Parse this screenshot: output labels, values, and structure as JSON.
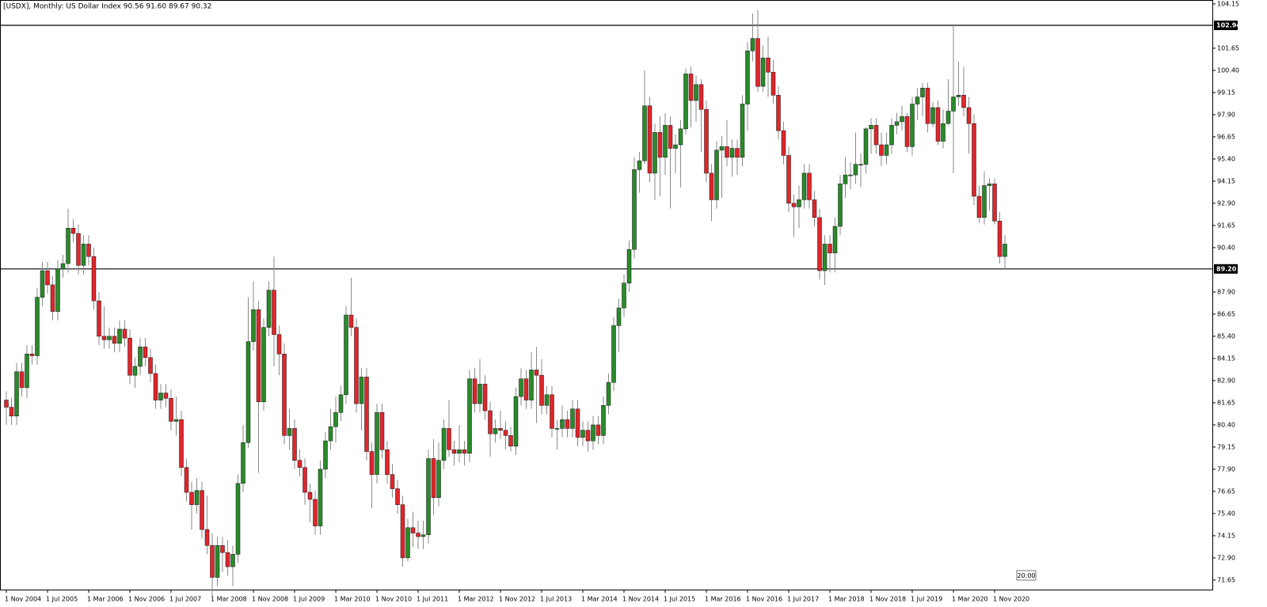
{
  "chart_data": {
    "type": "candlestick",
    "title": "[USDX], Monthly:  US Dollar Index  90.56 91.60 89.67 90.32",
    "time_marker": "20:00",
    "up_color": "#2a8a2a",
    "down_color": "#e0262b",
    "wick_color": "#8a8a8a",
    "ylim": [
      71.11,
      104.37
    ],
    "yticks": [
      71.65,
      {
        "value": 72.9,
        "label": "72.90"
      },
      74.15,
      {
        "value": 75.4,
        "label": "75.40"
      },
      76.65,
      {
        "value": 77.9,
        "label": "77.90"
      },
      79.15,
      {
        "value": 80.4,
        "label": "80.40"
      },
      81.65,
      {
        "value": 82.9,
        "label": "82.90"
      },
      84.15,
      {
        "value": 85.4,
        "label": "85.40"
      },
      86.65,
      {
        "value": 87.9,
        "label": "87.90"
      },
      {
        "value": 90.4,
        "label": "90.40"
      },
      91.65,
      {
        "value": 92.9,
        "label": "92.90"
      },
      94.15,
      {
        "value": 95.4,
        "label": "95.40"
      },
      96.65,
      {
        "value": 97.9,
        "label": "97.90"
      },
      99.15,
      {
        "value": 100.4,
        "label": "100.40"
      },
      101.65,
      104.15
    ],
    "levels": [
      102.94,
      {
        "value": 89.2,
        "label": "89.20"
      }
    ],
    "categories": [
      "1 Nov 2004",
      null,
      null,
      null,
      null,
      null,
      null,
      null,
      "1 Jul 2005",
      null,
      null,
      null,
      null,
      null,
      null,
      null,
      "1 Mar 2006",
      null,
      null,
      null,
      null,
      null,
      null,
      null,
      "1 Nov 2006",
      null,
      null,
      null,
      null,
      null,
      null,
      null,
      "1 Jul 2007",
      null,
      null,
      null,
      null,
      null,
      null,
      null,
      "1 Mar 2008",
      null,
      null,
      null,
      null,
      null,
      null,
      null,
      "1 Nov 2008",
      null,
      null,
      null,
      null,
      null,
      null,
      null,
      "1 Jul 2009",
      null,
      null,
      null,
      null,
      null,
      null,
      null,
      "1 Mar 2010",
      null,
      null,
      null,
      null,
      null,
      null,
      null,
      "1 Nov 2010",
      null,
      null,
      null,
      null,
      null,
      null,
      null,
      "1 Jul 2011",
      null,
      null,
      null,
      null,
      null,
      null,
      null,
      "1 Mar 2012",
      null,
      null,
      null,
      null,
      null,
      null,
      null,
      "1 Nov 2012",
      null,
      null,
      null,
      null,
      null,
      null,
      null,
      "1 Jul 2013",
      null,
      null,
      null,
      null,
      null,
      null,
      null,
      "1 Mar 2014",
      null,
      null,
      null,
      null,
      null,
      null,
      null,
      "1 Nov 2014",
      null,
      null,
      null,
      null,
      null,
      null,
      null,
      "1 Jul 2015",
      null,
      null,
      null,
      null,
      null,
      null,
      null,
      "1 Mar 2016",
      null,
      null,
      null,
      null,
      null,
      null,
      null,
      "1 Nov 2016",
      null,
      null,
      null,
      null,
      null,
      null,
      null,
      "1 Jul 2017",
      null,
      null,
      null,
      null,
      null,
      null,
      null,
      "1 Mar 2018",
      null,
      null,
      null,
      null,
      null,
      null,
      null,
      "1 Nov 2018",
      null,
      null,
      null,
      null,
      null,
      null,
      null,
      "1 Jul 2019",
      null,
      null,
      null,
      null,
      null,
      null,
      null,
      "1 Mar 2020",
      null,
      null,
      null,
      null,
      null,
      null,
      null,
      "1 Nov 2020",
      null,
      null
    ],
    "open": [
      81.8,
      81.4,
      80.9,
      83.4,
      82.5,
      84.4,
      84.3,
      87.6,
      89.1,
      88.3,
      86.8,
      89.2,
      89.5,
      91.5,
      91.2,
      89.4,
      90.6,
      89.9,
      87.4,
      85.4,
      85.2,
      85.4,
      85.0,
      85.8,
      85.3,
      83.2,
      83.7,
      84.8,
      84.2,
      83.3,
      81.8,
      82.2,
      81.9,
      80.6,
      80.7,
      78.0,
      76.6,
      75.9,
      76.7,
      74.5,
      73.6,
      71.8,
      73.6,
      73.2,
      72.4,
      73.1,
      77.1,
      79.4,
      85.1,
      86.9,
      81.7,
      85.9,
      88.0,
      85.5,
      84.4,
      79.8,
      80.2,
      78.4,
      78.0,
      76.6,
      76.2,
      74.7,
      77.9,
      79.5,
      80.3,
      81.1,
      82.1,
      86.6,
      85.9,
      81.6,
      83.1,
      78.9,
      77.6,
      81.1,
      79.0,
      77.6,
      76.8,
      75.9,
      72.9,
      74.6,
      74.3,
      74.1,
      74.2,
      78.5,
      76.3,
      78.4,
      80.2,
      79.0,
      78.8,
      79.0,
      78.8,
      83.0,
      81.6,
      82.7,
      81.2,
      79.9,
      80.2,
      80.1,
      79.8,
      79.2,
      82.0,
      83.0,
      81.8,
      83.5,
      83.2,
      81.5,
      82.1,
      80.2,
      80.2,
      80.7,
      80.2,
      81.3,
      79.7,
      80.1,
      79.5,
      80.4,
      79.8,
      81.5,
      82.8,
      86.0,
      87.0,
      88.4,
      90.3,
      94.8,
      95.3,
      98.4,
      94.6,
      96.9,
      95.5,
      97.3,
      96.0,
      96.2,
      97.1,
      100.2,
      98.7,
      99.6,
      98.2,
      94.6,
      93.1,
      95.9,
      96.1,
      95.5,
      96.0,
      95.5,
      98.5,
      101.5,
      102.2,
      99.5,
      101.1,
      100.3,
      99.0,
      97.0,
      95.6,
      92.9,
      92.7,
      93.1,
      94.6,
      93.1,
      92.1,
      89.1,
      90.6,
      90.1,
      91.6,
      94.0,
      94.5,
      94.5,
      95.1,
      95.1,
      97.1,
      97.3,
      96.2,
      95.6,
      96.2,
      97.3,
      97.5,
      97.8,
      96.1,
      98.5,
      98.9,
      99.4,
      97.4,
      98.3,
      96.4,
      97.4,
      98.1,
      98.9,
      99.0,
      98.3,
      97.4,
      93.3,
      92.1,
      93.9,
      94.0,
      91.9,
      89.9
    ],
    "high": [
      82.3,
      81.9,
      83.9,
      83.9,
      84.9,
      84.9,
      88.1,
      89.6,
      89.6,
      88.8,
      89.7,
      90.0,
      92.6,
      92.0,
      91.7,
      91.1,
      91.1,
      90.4,
      87.9,
      87.1,
      85.9,
      85.9,
      86.3,
      86.3,
      85.8,
      84.2,
      85.3,
      85.3,
      84.7,
      83.8,
      82.7,
      82.7,
      82.4,
      82.0,
      81.2,
      78.5,
      77.2,
      77.4,
      77.2,
      76.4,
      74.3,
      74.1,
      74.1,
      73.9,
      73.6,
      77.6,
      80.4,
      87.6,
      88.5,
      87.4,
      86.4,
      88.5,
      89.9,
      86.0,
      85.0,
      81.3,
      80.7,
      79.0,
      78.5,
      77.1,
      76.7,
      78.4,
      80.0,
      81.3,
      82.0,
      82.6,
      87.1,
      88.7,
      86.4,
      83.6,
      83.6,
      79.4,
      81.6,
      81.6,
      79.5,
      78.2,
      77.3,
      76.4,
      75.1,
      75.5,
      75.0,
      75.0,
      79.0,
      79.6,
      79.4,
      80.7,
      81.8,
      79.5,
      80.4,
      79.5,
      83.5,
      83.6,
      84.1,
      83.2,
      81.7,
      80.7,
      81.2,
      80.6,
      80.3,
      82.5,
      83.6,
      83.5,
      84.5,
      84.8,
      84.1,
      82.6,
      82.6,
      80.7,
      81.5,
      81.2,
      81.8,
      81.8,
      80.6,
      80.6,
      80.9,
      80.9,
      82.0,
      83.3,
      86.5,
      87.5,
      88.9,
      90.8,
      95.5,
      95.8,
      100.4,
      98.9,
      97.4,
      97.8,
      98.0,
      97.8,
      96.8,
      97.6,
      100.5,
      100.6,
      100.1,
      99.9,
      98.7,
      95.1,
      96.4,
      96.7,
      97.6,
      96.5,
      96.5,
      99.0,
      102.0,
      103.6,
      103.8,
      101.8,
      102.3,
      101.0,
      99.5,
      97.5,
      96.1,
      93.4,
      93.9,
      95.1,
      95.1,
      93.6,
      92.6,
      91.1,
      91.1,
      92.1,
      94.5,
      95.5,
      95.2,
      96.9,
      95.7,
      97.2,
      97.7,
      97.7,
      96.9,
      96.9,
      97.7,
      98.0,
      98.4,
      98.0,
      98.9,
      99.4,
      99.7,
      99.7,
      98.6,
      98.7,
      98.2,
      99.9,
      103.0,
      100.9,
      100.6,
      98.9,
      97.9,
      93.9,
      94.7,
      94.3,
      94.3,
      92.4,
      91.1
    ],
    "low": [
      80.4,
      80.4,
      80.4,
      82.0,
      81.9,
      83.8,
      83.8,
      87.1,
      87.8,
      86.3,
      86.3,
      88.7,
      89.0,
      90.7,
      88.9,
      88.9,
      89.4,
      86.9,
      84.9,
      84.7,
      84.7,
      84.5,
      84.5,
      84.8,
      82.7,
      82.5,
      83.2,
      83.7,
      82.8,
      81.3,
      81.3,
      81.4,
      80.1,
      79.8,
      77.5,
      76.1,
      74.5,
      75.4,
      74.0,
      73.1,
      70.7,
      71.3,
      72.1,
      71.9,
      71.3,
      72.6,
      76.6,
      79.1,
      84.6,
      77.7,
      81.2,
      85.4,
      83.7,
      83.2,
      79.3,
      79.0,
      77.9,
      77.5,
      75.9,
      74.9,
      74.2,
      74.2,
      77.4,
      79.0,
      79.4,
      80.6,
      81.6,
      85.4,
      81.1,
      80.1,
      78.4,
      75.7,
      77.1,
      78.5,
      77.1,
      76.3,
      75.4,
      72.4,
      72.7,
      73.5,
      73.4,
      73.4,
      73.7,
      75.3,
      75.8,
      77.9,
      78.6,
      78.1,
      78.3,
      78.1,
      78.3,
      81.1,
      81.1,
      80.7,
      78.6,
      79.4,
      79.6,
      79.0,
      78.9,
      78.7,
      81.5,
      81.3,
      81.3,
      80.5,
      81.0,
      81.0,
      79.7,
      79.0,
      79.7,
      79.7,
      79.7,
      79.2,
      79.2,
      78.9,
      79.0,
      79.3,
      79.3,
      81.0,
      82.3,
      84.5,
      86.5,
      87.9,
      89.8,
      93.5,
      95.1,
      94.1,
      93.1,
      93.3,
      94.5,
      92.6,
      94.6,
      93.8,
      96.8,
      97.2,
      97.5,
      95.8,
      94.1,
      91.9,
      92.6,
      93.2,
      95.0,
      94.4,
      94.5,
      95.0,
      97.0,
      100.9,
      99.2,
      99.2,
      98.9,
      98.5,
      96.5,
      95.1,
      92.4,
      91.0,
      91.5,
      92.6,
      92.6,
      91.6,
      88.6,
      88.3,
      89.0,
      89.0,
      91.1,
      93.2,
      93.7,
      94.0,
      93.8,
      94.6,
      95.7,
      95.7,
      95.0,
      95.1,
      95.7,
      96.8,
      97.0,
      95.8,
      95.6,
      97.6,
      97.8,
      96.9,
      97.2,
      96.2,
      96.0,
      97.3,
      94.6,
      98.4,
      97.8,
      95.7,
      92.8,
      91.8,
      91.7,
      92.5,
      91.7,
      89.5,
      89.2
    ],
    "close": [
      81.4,
      80.9,
      83.4,
      82.5,
      84.4,
      84.3,
      87.6,
      89.1,
      88.3,
      86.8,
      89.2,
      89.5,
      91.5,
      91.2,
      89.4,
      90.6,
      89.9,
      87.4,
      85.4,
      85.2,
      85.4,
      85.0,
      85.8,
      85.3,
      83.2,
      83.7,
      84.8,
      84.2,
      83.3,
      81.8,
      82.2,
      81.9,
      80.6,
      80.7,
      78.0,
      76.6,
      75.9,
      76.7,
      74.5,
      73.6,
      71.8,
      73.6,
      73.2,
      72.4,
      73.1,
      77.1,
      79.4,
      85.1,
      86.9,
      81.7,
      85.9,
      88.0,
      85.5,
      84.4,
      79.8,
      80.2,
      78.4,
      78.0,
      76.6,
      76.2,
      74.7,
      77.9,
      79.5,
      80.3,
      81.1,
      82.1,
      86.6,
      85.9,
      81.6,
      83.1,
      78.9,
      77.6,
      81.1,
      79.0,
      77.6,
      76.8,
      75.9,
      72.9,
      74.6,
      74.3,
      74.1,
      74.2,
      78.5,
      76.3,
      78.4,
      80.2,
      79.0,
      78.8,
      79.0,
      78.8,
      83.0,
      81.6,
      82.7,
      81.2,
      79.9,
      80.2,
      80.1,
      79.8,
      79.2,
      82.0,
      83.0,
      81.8,
      83.5,
      83.2,
      81.5,
      82.1,
      80.2,
      80.2,
      80.7,
      80.2,
      81.3,
      79.7,
      80.1,
      79.5,
      80.4,
      79.8,
      81.5,
      82.8,
      86.0,
      87.0,
      88.4,
      90.3,
      94.8,
      95.3,
      98.4,
      94.6,
      96.9,
      95.5,
      97.3,
      96.0,
      96.2,
      97.1,
      100.2,
      98.7,
      99.6,
      98.2,
      94.6,
      93.1,
      95.9,
      96.1,
      95.5,
      96.0,
      95.5,
      98.5,
      101.5,
      102.2,
      99.5,
      101.1,
      100.3,
      99.0,
      97.0,
      95.6,
      92.9,
      92.7,
      93.1,
      94.6,
      93.1,
      92.1,
      89.1,
      90.6,
      90.1,
      91.6,
      94.0,
      94.5,
      94.5,
      95.1,
      95.1,
      97.1,
      97.3,
      96.2,
      95.6,
      96.2,
      97.3,
      97.5,
      97.8,
      96.1,
      98.5,
      98.9,
      99.4,
      97.4,
      98.3,
      96.4,
      97.4,
      98.1,
      98.9,
      99.0,
      98.3,
      97.4,
      93.3,
      92.1,
      93.9,
      94.0,
      91.9,
      89.9,
      90.6
    ]
  }
}
